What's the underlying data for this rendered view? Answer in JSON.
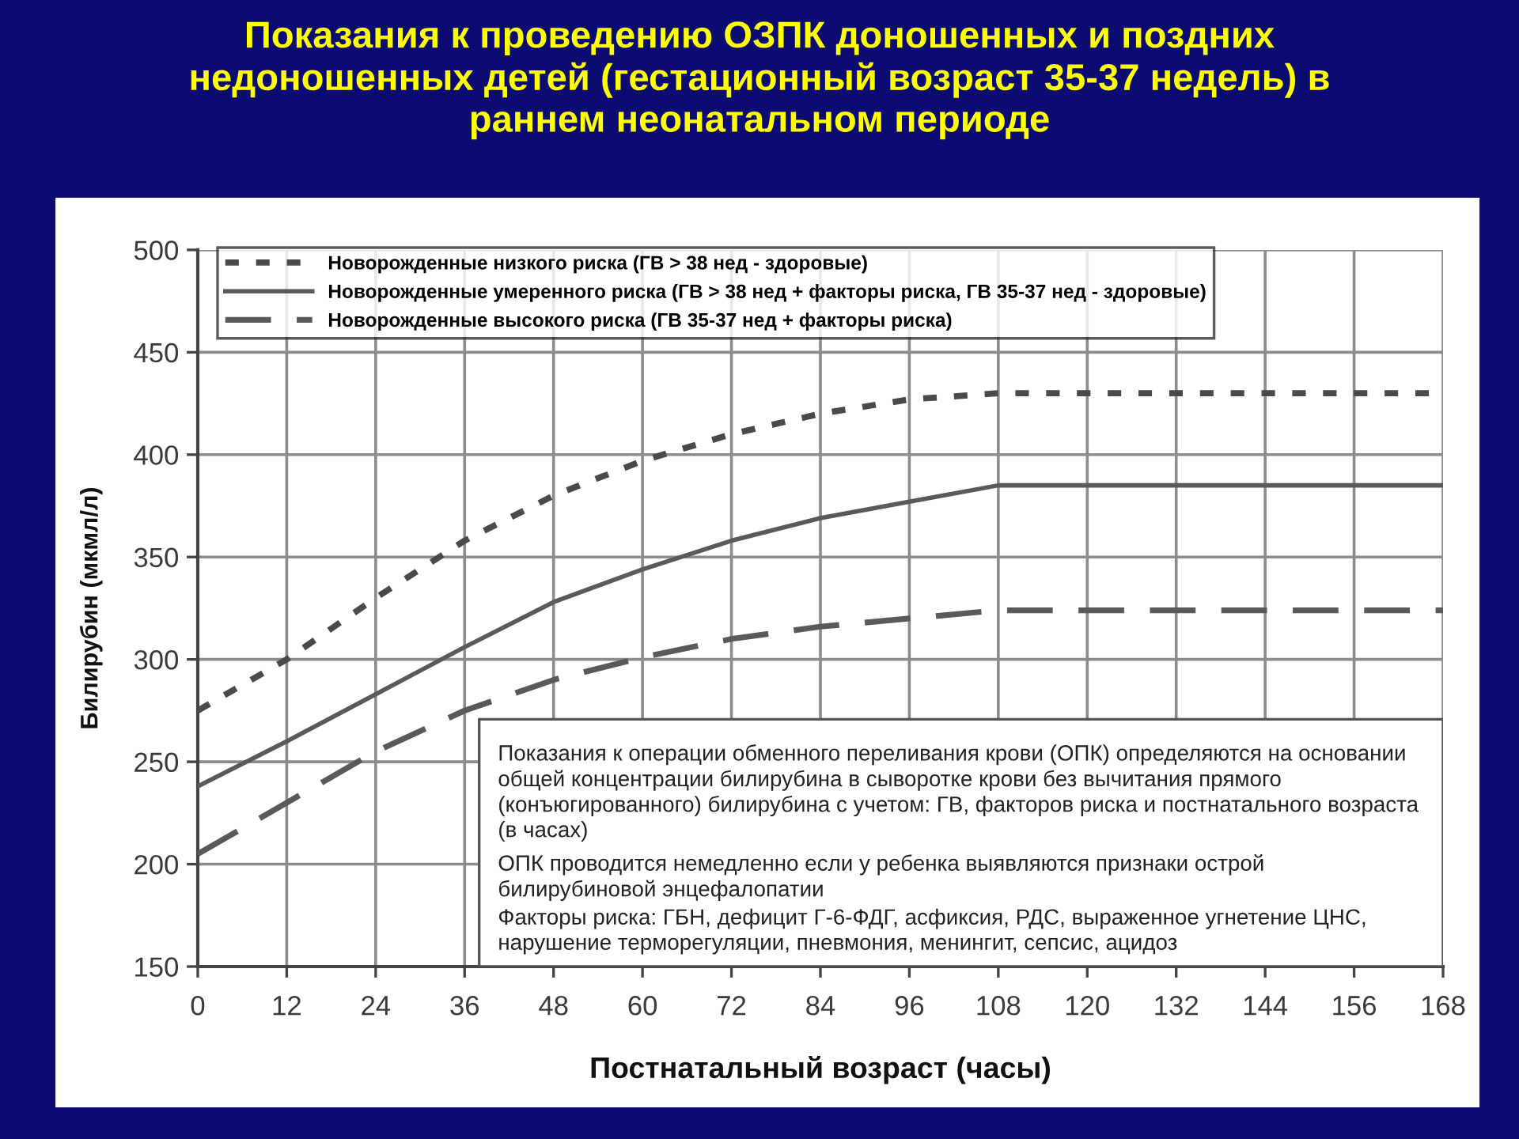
{
  "chart_data": {
    "type": "line",
    "title": "Показания к проведению ОЗПК доношенных и поздних недоношенных детей (гестационный возраст 35-37 недель) в раннем неонатальном периоде",
    "xlabel": "Постнатальный возраст (часы)",
    "ylabel": "Билирубин (мкмл/л)",
    "x": [
      0,
      12,
      24,
      36,
      48,
      60,
      72,
      84,
      96,
      108,
      168
    ],
    "series": [
      {
        "name": "Новорожденные низкого риска (ГВ > 38 нед - здоровые)",
        "color": "#4a4a4a",
        "line_style": "dotted",
        "values": [
          275,
          300,
          330,
          358,
          380,
          397,
          410,
          420,
          427,
          430,
          430
        ]
      },
      {
        "name": "Новорожденные умеренного риска (ГВ > 38 нед + факторы риска, ГВ 35-37 нед - здоровые)",
        "color": "#5a5a5a",
        "line_style": "solid",
        "values": [
          238,
          260,
          283,
          306,
          328,
          344,
          358,
          369,
          377,
          385,
          385
        ]
      },
      {
        "name": "Новорожденные высокого риска (ГВ 35-37 нед + факторы риска)",
        "color": "#5a5a5a",
        "line_style": "dashed",
        "values": [
          205,
          230,
          255,
          275,
          290,
          301,
          310,
          316,
          320,
          324,
          324
        ]
      }
    ],
    "xlim": [
      0,
      168
    ],
    "xticks": [
      0,
      12,
      24,
      36,
      48,
      60,
      72,
      84,
      96,
      108,
      120,
      132,
      144,
      156,
      168
    ],
    "ylim": [
      150,
      500
    ],
    "yticks": [
      150,
      200,
      250,
      300,
      350,
      400,
      450,
      500
    ],
    "grid": true,
    "legend": "top left",
    "annotations": [
      "Показания к операции обменного переливания крови (ОПК) определяются на основании общей концентрации билирубина в сыворотке крови без вычитания прямого (конъюгированного) билирубина с учетом: ГВ, факторов риска и постнатального возраста (в часах)",
      "ОПК проводится немедленно если у ребенка выявляются признаки острой билирубиновой энцефалопатии",
      "Факторы риска: ГБН, дефицит Г-6-ФДГ, асфиксия, РДС, выраженное угнетение ЦНС, нарушение терморегуляции, пневмония, менингит, сепсис, ацидоз"
    ]
  }
}
